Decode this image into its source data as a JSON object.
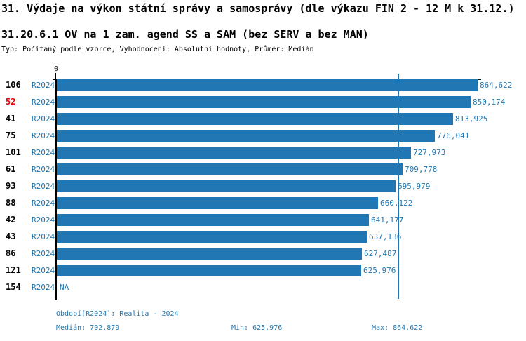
{
  "title": "31. Výdaje na výkon státní správy a samosprávy (dle výkazu FIN 2 - 12 M k 31.12.)",
  "subtitle": "31.20.6.1 OV na 1 zam. agend SS a SAM (bez SERV a bez MAN)",
  "meta_line": "Typ: Počítaný podle vzorce, Vyhodnocení: Absolutní hodnoty, Průměr: Medián",
  "chart_data": {
    "type": "bar",
    "orientation": "horizontal",
    "axis_zero_label": "0",
    "categories": [
      "106",
      "52",
      "41",
      "75",
      "101",
      "61",
      "93",
      "88",
      "42",
      "43",
      "86",
      "121",
      "154"
    ],
    "series_label": "R2024",
    "values": [
      864622,
      850174,
      813925,
      776041,
      727973,
      709778,
      695979,
      660122,
      641177,
      637136,
      627487,
      625976,
      null
    ],
    "value_labels": [
      "864,622",
      "850,174",
      "813,925",
      "776,041",
      "727,973",
      "709,778",
      "695,979",
      "660,122",
      "641,177",
      "637,136",
      "627,487",
      "625,976",
      "NA"
    ],
    "highlighted_category": "52",
    "median_value": 702879,
    "xlim": [
      0,
      864622
    ],
    "grid": false,
    "legend_position": "none",
    "bar_color": "#2077b4",
    "median_line_color": "#2077b4",
    "highlight_color": "#ee0000"
  },
  "footer": {
    "period_line": "Období[R2024]: Realita - 2024",
    "median_label": "Medián: 702,879",
    "min_label": "Min: 625,976",
    "max_label": "Max: 864,622"
  }
}
